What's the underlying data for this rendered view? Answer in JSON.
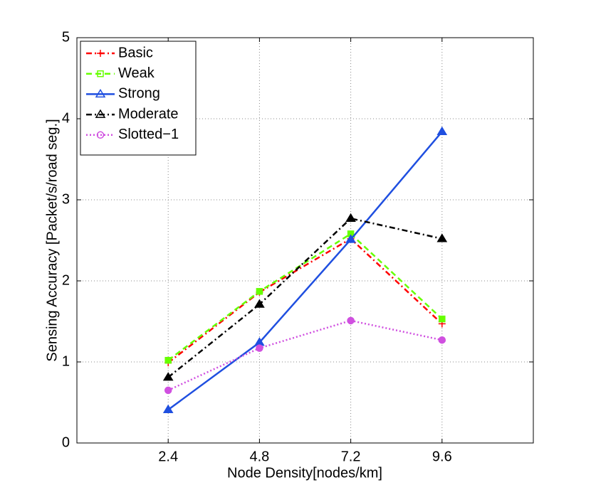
{
  "chart_data": {
    "type": "line",
    "xlabel": "Node Density[nodes/km]",
    "ylabel": "Sensing Accuracy [Packet/s/road seg.]",
    "x": [
      2.4,
      4.8,
      7.2,
      9.6
    ],
    "xlim": [
      0,
      12
    ],
    "xticks": [
      2.4,
      4.8,
      7.2,
      9.6
    ],
    "ylim": [
      0,
      5
    ],
    "yticks": [
      0,
      1,
      2,
      3,
      4,
      5
    ],
    "grid": true,
    "legend": "upper left",
    "series": [
      {
        "name": "Basic",
        "color": "#ff0000",
        "linestyle": "dashdot",
        "marker": "plus",
        "values": [
          0.99,
          1.86,
          2.52,
          1.47
        ]
      },
      {
        "name": "Weak",
        "color": "#66ff00",
        "linestyle": "dashed",
        "marker": "square",
        "values": [
          1.02,
          1.87,
          2.58,
          1.53
        ]
      },
      {
        "name": "Strong",
        "color": "#1f4fe0",
        "linestyle": "solid",
        "marker": "triangle",
        "values": [
          0.41,
          1.24,
          2.51,
          3.84
        ]
      },
      {
        "name": "Moderate",
        "color": "#000000",
        "linestyle": "dashdot",
        "marker": "triangle",
        "values": [
          0.81,
          1.71,
          2.77,
          2.52
        ]
      },
      {
        "name": "Slotted−1",
        "color": "#d050e0",
        "linestyle": "dotted",
        "marker": "circle",
        "values": [
          0.65,
          1.17,
          1.51,
          1.27
        ]
      }
    ]
  }
}
